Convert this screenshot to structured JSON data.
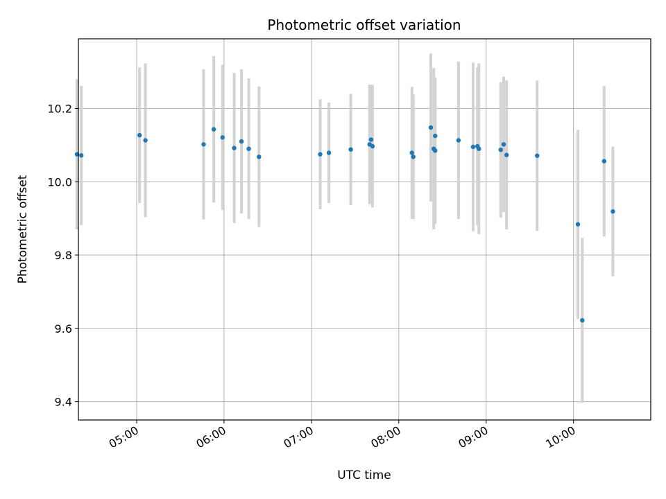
{
  "chart_data": {
    "type": "scatter",
    "title": "Photometric offset variation",
    "xlabel": "UTC time",
    "ylabel": "Photometric offset",
    "x_axis": {
      "kind": "time",
      "range": [
        "04:20",
        "10:53"
      ]
    },
    "xticks": [
      "05:00",
      "06:00",
      "07:00",
      "08:00",
      "09:00",
      "10:00"
    ],
    "ylim": [
      9.35,
      10.39
    ],
    "yticks": [
      "9.4",
      "9.6",
      "9.8",
      "10.0",
      "10.2"
    ],
    "grid": true,
    "colors": {
      "point": "#1f77b4",
      "errorbar": "#d3d3d3",
      "grid": "#b0b0b0"
    },
    "points": [
      {
        "x": "04:19",
        "y": 10.075,
        "yerr": 0.205
      },
      {
        "x": "04:22",
        "y": 10.072,
        "yerr": 0.19
      },
      {
        "x": "05:02",
        "y": 10.127,
        "yerr": 0.185
      },
      {
        "x": "05:06",
        "y": 10.113,
        "yerr": 0.21
      },
      {
        "x": "05:46",
        "y": 10.102,
        "yerr": 0.205
      },
      {
        "x": "05:53",
        "y": 10.143,
        "yerr": 0.2
      },
      {
        "x": "05:59",
        "y": 10.121,
        "yerr": 0.198
      },
      {
        "x": "06:07",
        "y": 10.092,
        "yerr": 0.205
      },
      {
        "x": "06:12",
        "y": 10.11,
        "yerr": 0.197
      },
      {
        "x": "06:17",
        "y": 10.09,
        "yerr": 0.192
      },
      {
        "x": "06:24",
        "y": 10.068,
        "yerr": 0.192
      },
      {
        "x": "07:06",
        "y": 10.075,
        "yerr": 0.15
      },
      {
        "x": "07:12",
        "y": 10.079,
        "yerr": 0.137
      },
      {
        "x": "07:27",
        "y": 10.088,
        "yerr": 0.152
      },
      {
        "x": "07:40",
        "y": 10.102,
        "yerr": 0.163
      },
      {
        "x": "07:41",
        "y": 10.115,
        "yerr": 0.15
      },
      {
        "x": "07:42",
        "y": 10.097,
        "yerr": 0.167
      },
      {
        "x": "08:09",
        "y": 10.079,
        "yerr": 0.18
      },
      {
        "x": "08:10",
        "y": 10.068,
        "yerr": 0.17
      },
      {
        "x": "08:22",
        "y": 10.148,
        "yerr": 0.202
      },
      {
        "x": "08:24",
        "y": 10.09,
        "yerr": 0.22
      },
      {
        "x": "08:25",
        "y": 10.125,
        "yerr": 0.16
      },
      {
        "x": "08:25",
        "y": 10.085,
        "yerr": 0.2
      },
      {
        "x": "08:41",
        "y": 10.113,
        "yerr": 0.215
      },
      {
        "x": "08:51",
        "y": 10.095,
        "yerr": 0.23
      },
      {
        "x": "08:54",
        "y": 10.097,
        "yerr": 0.215
      },
      {
        "x": "08:55",
        "y": 10.09,
        "yerr": 0.233
      },
      {
        "x": "09:10",
        "y": 10.087,
        "yerr": 0.185
      },
      {
        "x": "09:12",
        "y": 10.102,
        "yerr": 0.185
      },
      {
        "x": "09:14",
        "y": 10.073,
        "yerr": 0.203
      },
      {
        "x": "09:35",
        "y": 10.071,
        "yerr": 0.205
      },
      {
        "x": "10:03",
        "y": 9.884,
        "yerr": 0.258
      },
      {
        "x": "10:06",
        "y": 9.622,
        "yerr": 0.225
      },
      {
        "x": "10:21",
        "y": 10.056,
        "yerr": 0.205
      },
      {
        "x": "10:27",
        "y": 9.919,
        "yerr": 0.177
      }
    ]
  }
}
